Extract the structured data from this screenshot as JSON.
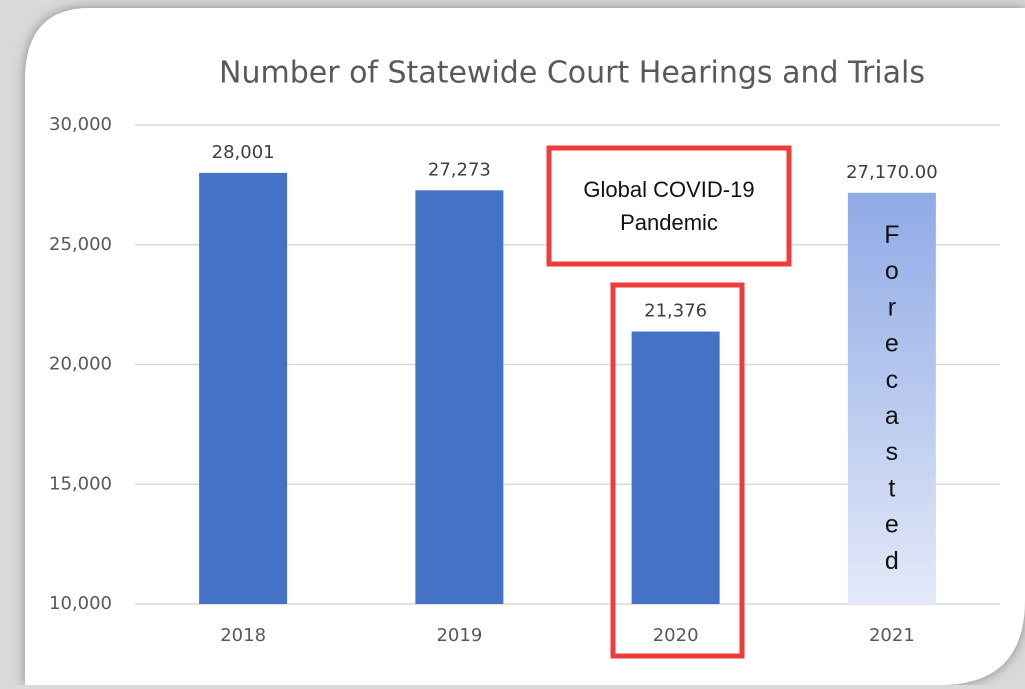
{
  "chart_data": {
    "type": "bar",
    "title": "Number of Statewide Court Hearings and Trials",
    "categories": [
      "2018",
      "2019",
      "2020",
      "2021"
    ],
    "values": [
      28001,
      27273,
      21376,
      27170
    ],
    "value_labels": [
      "28,001",
      "27,273",
      "21,376",
      "27,170.00"
    ],
    "colors": [
      "#4472c4",
      "#4472c4",
      "#4472c4",
      "#8faae6"
    ],
    "ylim": [
      10000,
      30000
    ],
    "yticks": [
      {
        "value": 10000,
        "label": "10,000"
      },
      {
        "value": 15000,
        "label": "15,000"
      },
      {
        "value": 20000,
        "label": "20,000"
      },
      {
        "value": 25000,
        "label": "25,000"
      },
      {
        "value": 30000,
        "label": "30,000"
      }
    ],
    "grid": true,
    "annotations": [
      [
        "Global COVID-19",
        "Pandemic"
      ],
      "Forecasted"
    ]
  }
}
